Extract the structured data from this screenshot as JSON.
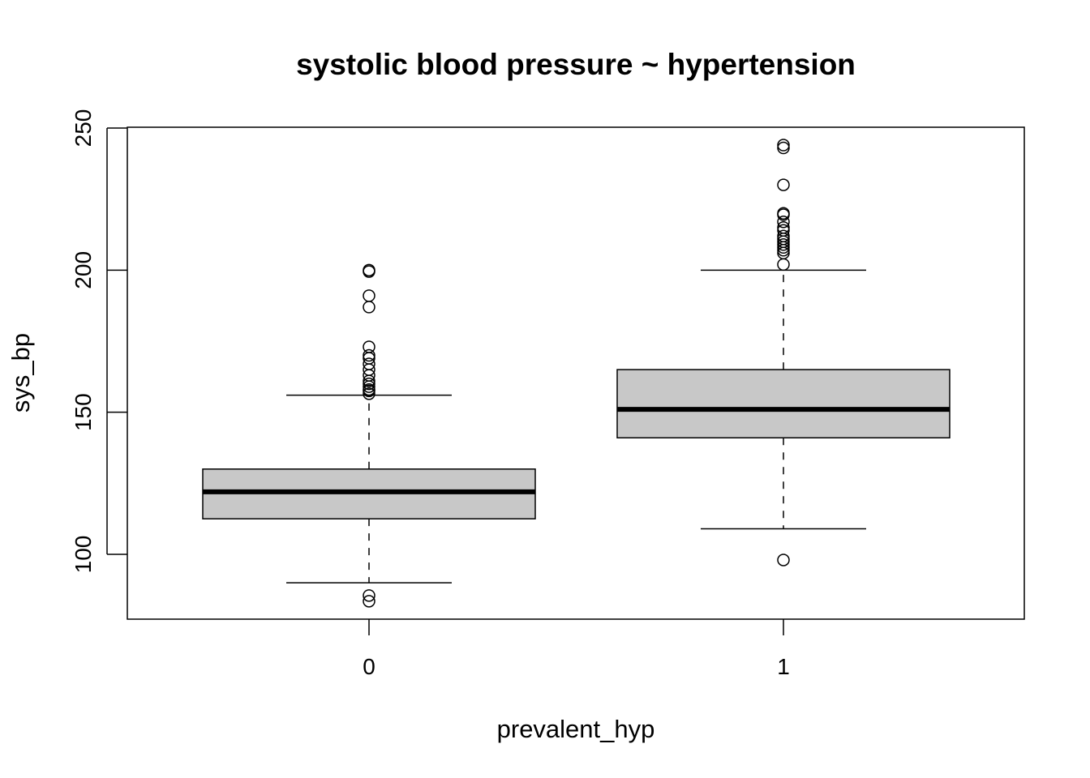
{
  "chart_data": {
    "type": "boxplot",
    "title": "systolic blood pressure ~ hypertension",
    "xlabel": "prevalent_hyp",
    "ylabel": "sys_bp",
    "ylim": [
      77,
      250
    ],
    "yticks": [
      100,
      150,
      200,
      250
    ],
    "box_fill": "#c8c8c8",
    "categories": [
      "0",
      "1"
    ],
    "groups": [
      {
        "category": "0",
        "whisker_low": 90,
        "q1": 112.5,
        "median": 122,
        "q3": 130,
        "whisker_high": 156,
        "outliers": [
          83.5,
          85.5,
          156.5,
          157.5,
          158,
          159,
          160,
          161,
          163,
          165,
          167,
          169,
          170,
          173,
          187,
          191,
          199.5,
          200
        ]
      },
      {
        "category": "1",
        "whisker_low": 109,
        "q1": 141,
        "median": 151,
        "q3": 165,
        "whisker_high": 200,
        "outliers": [
          98,
          202,
          206,
          207,
          208,
          209,
          210,
          211,
          212,
          214,
          215,
          217,
          219.5,
          220,
          230,
          243,
          244
        ]
      }
    ]
  }
}
